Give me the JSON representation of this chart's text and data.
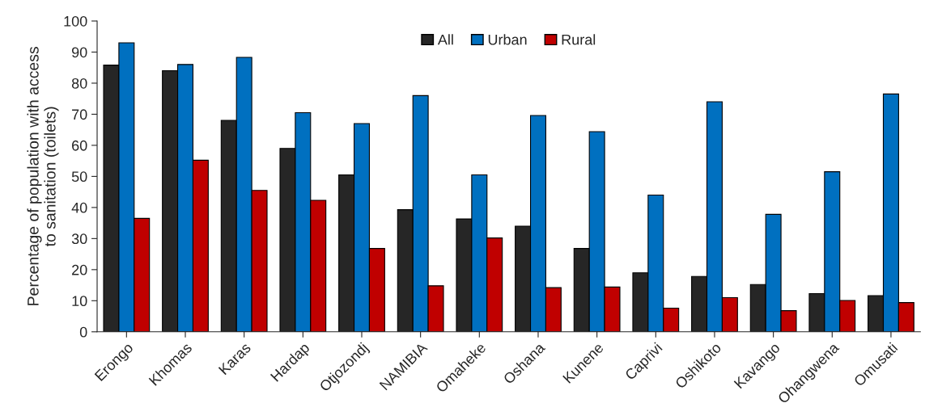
{
  "chart_data": {
    "type": "bar",
    "ylabel": "Percentage of population with access\nto sanitation (toilets)",
    "categories": [
      "Erongo",
      "Khomas",
      "Karas",
      "Hardap",
      "Otjozondj",
      "NAMIBIA",
      "Omaheke",
      "Oshana",
      "Kunene",
      "Caprivi",
      "Oshikoto",
      "Kavango",
      "Ohangwena",
      "Omusati"
    ],
    "series": [
      {
        "name": "All",
        "color": "#262626",
        "values": [
          85.8,
          84,
          68,
          59,
          50.5,
          39.3,
          36.3,
          34,
          26.8,
          19,
          17.8,
          15.2,
          12.3,
          11.6
        ]
      },
      {
        "name": "Urban",
        "color": "#0070c0",
        "values": [
          93,
          86,
          88.3,
          70.5,
          67,
          76,
          50.5,
          69.6,
          64.4,
          44,
          74,
          37.8,
          51.5,
          76.5
        ]
      },
      {
        "name": "Rural",
        "color": "#c00000",
        "values": [
          36.5,
          55.2,
          45.5,
          42.3,
          26.8,
          14.8,
          30.2,
          14.2,
          14.4,
          7.6,
          11,
          6.8,
          10.1,
          9.4
        ]
      }
    ],
    "ylim": [
      0,
      100
    ],
    "yticks": [
      0,
      10,
      20,
      30,
      40,
      50,
      60,
      70,
      80,
      90,
      100
    ],
    "grid": false,
    "legend": "top"
  }
}
